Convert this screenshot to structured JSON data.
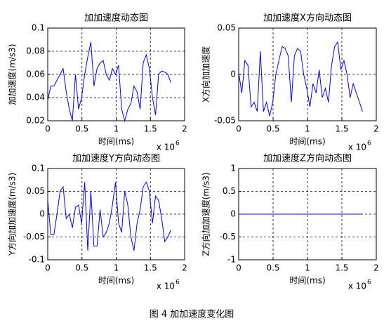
{
  "chart_data": [
    {
      "type": "line",
      "title": "加加速度动态图",
      "xlabel": "时间(ms)",
      "ylabel": "加加速度(m/s3)",
      "x_multiplier": {
        "text": "x 10",
        "exponent": "6"
      },
      "x": [
        0,
        0.045,
        0.09,
        0.135,
        0.18,
        0.225,
        0.27,
        0.315,
        0.36,
        0.405,
        0.45,
        0.495,
        0.54,
        0.585,
        0.63,
        0.675,
        0.72,
        0.765,
        0.81,
        0.855,
        0.9,
        0.945,
        0.99,
        1.035,
        1.08,
        1.125,
        1.17,
        1.215,
        1.26,
        1.305,
        1.35,
        1.395,
        1.44,
        1.485,
        1.53,
        1.575,
        1.62,
        1.665,
        1.71,
        1.755,
        1.8
      ],
      "values": [
        0.038,
        0.05,
        0.05,
        0.055,
        0.06,
        0.065,
        0.045,
        0.03,
        0.02,
        0.06,
        0.03,
        0.04,
        0.06,
        0.075,
        0.088,
        0.05,
        0.065,
        0.07,
        0.072,
        0.06,
        0.055,
        0.065,
        0.06,
        0.068,
        0.03,
        0.02,
        0.03,
        0.035,
        0.05,
        0.045,
        0.03,
        0.07,
        0.077,
        0.065,
        0.04,
        0.025,
        0.06,
        0.063,
        0.062,
        0.06,
        0.053
      ],
      "color": "#0000ff",
      "xlim": [
        0,
        2
      ],
      "xticks": [
        0,
        0.5,
        1,
        1.5,
        2
      ],
      "ylim": [
        0.02,
        0.1
      ],
      "yticks": [
        0.02,
        0.04,
        0.06,
        0.08,
        0.1
      ],
      "grid": true
    },
    {
      "type": "line",
      "title": "加加速度X方向动态图",
      "xlabel": "时间(ms)",
      "ylabel": "X方向加加速度",
      "x_multiplier": {
        "text": "x 10",
        "exponent": "6"
      },
      "x": [
        0,
        0.045,
        0.09,
        0.135,
        0.18,
        0.225,
        0.27,
        0.315,
        0.36,
        0.405,
        0.45,
        0.495,
        0.54,
        0.585,
        0.63,
        0.675,
        0.72,
        0.765,
        0.81,
        0.855,
        0.9,
        0.945,
        0.99,
        1.035,
        1.08,
        1.125,
        1.17,
        1.215,
        1.26,
        1.305,
        1.35,
        1.395,
        1.44,
        1.485,
        1.53,
        1.575,
        1.62,
        1.665,
        1.71,
        1.755,
        1.8
      ],
      "values": [
        0.002,
        -0.02,
        0.015,
        0.01,
        -0.035,
        -0.03,
        -0.04,
        0.025,
        -0.04,
        -0.03,
        -0.045,
        -0.03,
        0.0,
        0.015,
        0.03,
        0.028,
        0.02,
        -0.03,
        0.02,
        0.028,
        0.025,
        0.0,
        -0.015,
        -0.035,
        -0.01,
        -0.02,
        0.005,
        -0.025,
        -0.015,
        -0.03,
        0.01,
        0.03,
        0.035,
        0.005,
        0.015,
        0.0,
        -0.025,
        -0.01,
        -0.02,
        -0.03,
        -0.04
      ],
      "color": "#0000ff",
      "xlim": [
        0,
        2
      ],
      "xticks": [
        0,
        0.5,
        1,
        1.5,
        2
      ],
      "ylim": [
        -0.05,
        0.05
      ],
      "yticks": [
        -0.05,
        0,
        0.05
      ],
      "grid": true
    },
    {
      "type": "line",
      "title": "加加速度Y方向动态图",
      "xlabel": "时间(ms)",
      "ylabel": "Y方向加加速度(m/s3)",
      "x_multiplier": {
        "text": "x 10",
        "exponent": "6"
      },
      "x": [
        0,
        0.045,
        0.09,
        0.135,
        0.18,
        0.225,
        0.27,
        0.315,
        0.36,
        0.405,
        0.45,
        0.495,
        0.54,
        0.585,
        0.63,
        0.675,
        0.72,
        0.765,
        0.81,
        0.855,
        0.9,
        0.945,
        0.99,
        1.035,
        1.08,
        1.125,
        1.17,
        1.215,
        1.26,
        1.305,
        1.35,
        1.395,
        1.44,
        1.485,
        1.53,
        1.575,
        1.62,
        1.665,
        1.71,
        1.755,
        1.8
      ],
      "values": [
        0.03,
        -0.045,
        -0.045,
        0,
        0.05,
        0.06,
        -0.01,
        0,
        -0.03,
        0.015,
        0.02,
        -0.02,
        0.07,
        -0.08,
        0.05,
        -0.07,
        -0.07,
        0.01,
        -0.05,
        -0.04,
        -0.02,
        0.02,
        0.07,
        -0.02,
        -0.04,
        0.05,
        0.02,
        -0.05,
        -0.08,
        -0.02,
        0.01,
        0.06,
        0.07,
        0.05,
        -0.02,
        0.04,
        0.03,
        -0.01,
        -0.06,
        -0.05,
        -0.035
      ],
      "color": "#0000ff",
      "xlim": [
        0,
        2
      ],
      "xticks": [
        0,
        0.5,
        1,
        1.5,
        2
      ],
      "ylim": [
        -0.1,
        0.1
      ],
      "yticks": [
        -0.1,
        -0.05,
        0,
        0.05,
        0.1
      ],
      "grid": true
    },
    {
      "type": "line",
      "title": "加加速度Z方向动态图",
      "xlabel": "时间(ms)",
      "ylabel": "Z方向加加速度(m/s3)",
      "x_multiplier": {
        "text": "x 10",
        "exponent": "6"
      },
      "x": [
        0,
        0.045,
        0.09,
        0.135,
        0.18,
        0.225,
        0.27,
        0.315,
        0.36,
        0.405,
        0.45,
        0.495,
        0.54,
        0.585,
        0.63,
        0.675,
        0.72,
        0.765,
        0.81,
        0.855,
        0.9,
        0.945,
        0.99,
        1.035,
        1.08,
        1.125,
        1.17,
        1.215,
        1.26,
        1.305,
        1.35,
        1.395,
        1.44,
        1.485,
        1.53,
        1.575,
        1.62,
        1.665,
        1.71,
        1.755,
        1.8
      ],
      "values": [
        0,
        0,
        0,
        0,
        0,
        0,
        0,
        0,
        0,
        0,
        0,
        0,
        0,
        0,
        0,
        0,
        0,
        0,
        0,
        0,
        0,
        0,
        0,
        0,
        0,
        0,
        0,
        0,
        0,
        0,
        0,
        0,
        0,
        0,
        0,
        0,
        0,
        0,
        0,
        0,
        0
      ],
      "color": "#0000ff",
      "xlim": [
        0,
        2
      ],
      "xticks": [
        0,
        0.5,
        1,
        1.5,
        2
      ],
      "ylim": [
        -1,
        1
      ],
      "yticks": [
        -1,
        -0.5,
        0,
        0.5,
        1
      ],
      "grid": true
    }
  ],
  "caption": "图 4  加加速度变化图"
}
